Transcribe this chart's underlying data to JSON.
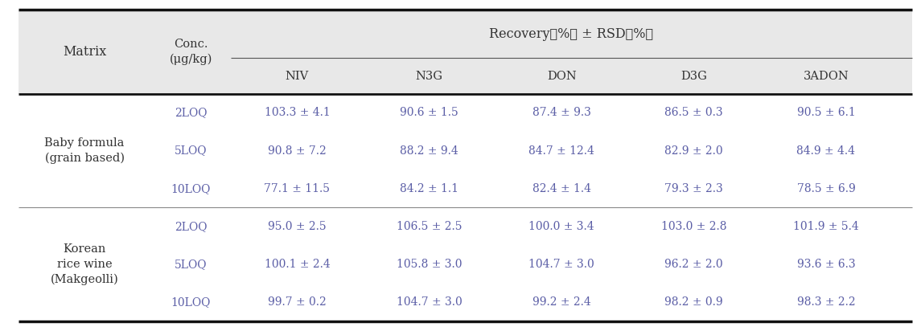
{
  "title_recovery": "Recovery（%） ± RSD（%）",
  "recovery_normal": "Recovery (%) ± RSD (%)",
  "col_headers": [
    "NIV",
    "N3G",
    "DON",
    "D3G",
    "3ADON"
  ],
  "matrix_header": "Matrix",
  "conc_header_line1": "Conc.",
  "conc_header_line2": "(μg/kg)",
  "rows": [
    [
      "Baby formula\n(grain based)",
      "2LOQ",
      "103.3 ± 4.1",
      "90.6 ± 1.5",
      "87.4 ± 9.3",
      "86.5 ± 0.3",
      "90.5 ± 6.1"
    ],
    [
      "",
      "5LOQ",
      "90.8 ± 7.2",
      "88.2 ± 9.4",
      "84.7 ± 12.4",
      "82.9 ± 2.0",
      "84.9 ± 4.4"
    ],
    [
      "",
      "10LOQ",
      "77.1 ± 11.5",
      "84.2 ± 1.1",
      "82.4 ± 1.4",
      "79.3 ± 2.3",
      "78.5 ± 6.9"
    ],
    [
      "Korean\nrice wine\n(Makgeolli)",
      "2LOQ",
      "95.0 ± 2.5",
      "106.5 ± 2.5",
      "100.0 ± 3.4",
      "103.0 ± 2.8",
      "101.9 ± 5.4"
    ],
    [
      "",
      "5LOQ",
      "100.1 ± 2.4",
      "105.8 ± 3.0",
      "104.7 ± 3.0",
      "96.2 ± 2.0",
      "93.6 ± 6.3"
    ],
    [
      "",
      "10LOQ",
      "99.7 ± 0.2",
      "104.7 ± 3.0",
      "99.2 ± 2.4",
      "98.2 ± 0.9",
      "98.3 ± 2.2"
    ]
  ],
  "header_bg": "#e8e8e8",
  "body_bg": "#ffffff",
  "text_color_header": "#333333",
  "text_color_data": "#5b5ea6",
  "text_color_matrix": "#333333",
  "border_color_thick": "#111111",
  "border_color_thin": "#333333",
  "figsize": [
    11.45,
    4.12
  ],
  "dpi": 100
}
